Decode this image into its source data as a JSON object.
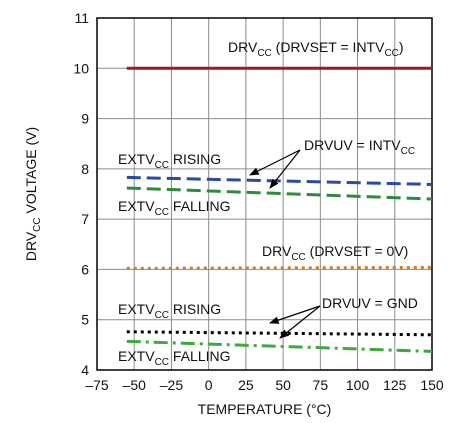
{
  "chart_data": {
    "type": "line",
    "xlabel": "TEMPERATURE (°C)",
    "ylabel": "DRVCC VOLTAGE (V)",
    "ylabel_parts": [
      {
        "t": "DRV"
      },
      {
        "t": "CC",
        "sub": true
      },
      {
        "t": " VOLTAGE (V)"
      }
    ],
    "xlim": [
      -75,
      150
    ],
    "ylim": [
      4,
      11
    ],
    "xticks": [
      -75,
      -50,
      -25,
      0,
      25,
      50,
      75,
      100,
      125,
      150
    ],
    "xtick_labels": [
      "–75",
      "–50",
      "–25",
      "0",
      "25",
      "50",
      "75",
      "100",
      "125",
      "150"
    ],
    "yticks": [
      4,
      5,
      6,
      7,
      8,
      9,
      10,
      11
    ],
    "ytick_labels": [
      "4",
      "5",
      "6",
      "7",
      "8",
      "9",
      "10",
      "11"
    ],
    "grid": true,
    "series": [
      {
        "x": [
          -55,
          150
        ],
        "y": [
          10.0,
          10.0
        ],
        "color": "#9b1b1f",
        "dash": "solid"
      },
      {
        "x": [
          -55,
          150
        ],
        "y": [
          7.83,
          7.69
        ],
        "color": "#2b4aa8",
        "dash": "dash"
      },
      {
        "x": [
          -55,
          150
        ],
        "y": [
          7.62,
          7.4
        ],
        "color": "#2e8b3d",
        "dash": "dash"
      },
      {
        "x": [
          -55,
          150
        ],
        "y": [
          6.02,
          6.04
        ],
        "color": "#d07a2c",
        "dash": "dot"
      },
      {
        "x": [
          -55,
          150
        ],
        "y": [
          4.76,
          4.7
        ],
        "color": "#000000",
        "dash": "dot"
      },
      {
        "x": [
          -55,
          150
        ],
        "y": [
          4.57,
          4.37
        ],
        "color": "#3daa3d",
        "dash": "dashdot"
      }
    ],
    "annotations": [
      {
        "parts": [
          {
            "t": "DRV"
          },
          {
            "t": "CC",
            "sub": true
          },
          {
            "t": " (DRVSET = INTV"
          },
          {
            "t": "CC",
            "sub": true
          },
          {
            "t": ")"
          }
        ]
      },
      {
        "parts": [
          {
            "t": "DRVUV = INTV"
          },
          {
            "t": "CC",
            "sub": true
          }
        ]
      },
      {
        "parts": [
          {
            "t": "EXTV"
          },
          {
            "t": "CC",
            "sub": true
          },
          {
            "t": " RISING"
          }
        ]
      },
      {
        "parts": [
          {
            "t": "EXTV"
          },
          {
            "t": "CC",
            "sub": true
          },
          {
            "t": " FALLING"
          }
        ]
      },
      {
        "parts": [
          {
            "t": "DRV"
          },
          {
            "t": "CC",
            "sub": true
          },
          {
            "t": " (DRVSET = 0V)"
          }
        ]
      },
      {
        "parts": [
          {
            "t": "EXTV"
          },
          {
            "t": "CC",
            "sub": true
          },
          {
            "t": " RISING"
          }
        ]
      },
      {
        "parts": [
          {
            "t": "DRVUV = GND"
          }
        ]
      },
      {
        "parts": [
          {
            "t": "EXTV"
          },
          {
            "t": "CC",
            "sub": true
          },
          {
            "t": " FALLING"
          }
        ]
      }
    ]
  }
}
